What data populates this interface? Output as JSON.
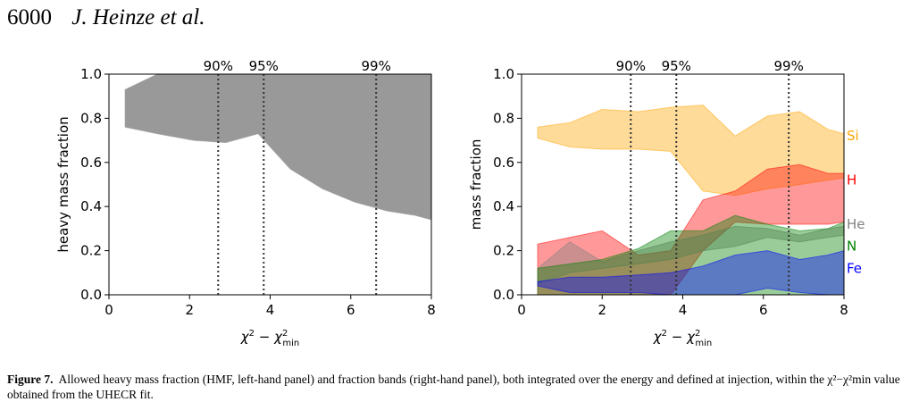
{
  "header": {
    "page_number": "6000",
    "authors": "J. Heinze et al."
  },
  "caption": {
    "label": "Figure 7.",
    "text": "Allowed heavy mass fraction (HMF, left-hand panel) and fraction bands (right-hand panel), both integrated over the energy and defined at injection, within the χ²−χ²min value obtained from the UHECR fit."
  },
  "chart_data": [
    {
      "type": "area",
      "xlabel": "χ² − χ²min",
      "ylabel": "heavy mass fraction",
      "xlim": [
        0,
        8
      ],
      "ylim": [
        0,
        1
      ],
      "xticks": [
        0,
        2,
        4,
        6,
        8
      ],
      "yticks": [
        0.0,
        0.2,
        0.4,
        0.6,
        0.8,
        1.0
      ],
      "ytick_labels": [
        "0.0",
        "0.2",
        "0.4",
        "0.6",
        "0.8",
        "1.0"
      ],
      "grid": false,
      "vlines": [
        {
          "x": 2.71,
          "label": "90%"
        },
        {
          "x": 3.84,
          "label": "95%"
        },
        {
          "x": 6.63,
          "label": "99%"
        }
      ],
      "series": [
        {
          "color": "#999999",
          "x": [
            0.4,
            1.2,
            2.1,
            2.9,
            3.7,
            4.5,
            5.3,
            6.1,
            6.9,
            7.6,
            8.0
          ],
          "lower": [
            0.76,
            0.73,
            0.7,
            0.69,
            0.73,
            0.57,
            0.48,
            0.42,
            0.38,
            0.36,
            0.34
          ],
          "upper": [
            0.93,
            1.0,
            1.0,
            1.0,
            1.0,
            1.0,
            1.0,
            1.0,
            1.0,
            1.0,
            1.0
          ]
        }
      ]
    },
    {
      "type": "area",
      "xlabel": "χ² − χ²min",
      "ylabel": "mass fraction",
      "xlim": [
        0,
        8
      ],
      "ylim": [
        0,
        1
      ],
      "xticks": [
        0,
        2,
        4,
        6,
        8
      ],
      "yticks": [
        0.0,
        0.2,
        0.4,
        0.6,
        0.8,
        1.0
      ],
      "ytick_labels": [
        "0.0",
        "0.2",
        "0.4",
        "0.6",
        "0.8",
        "1.0"
      ],
      "grid": false,
      "vlines": [
        {
          "x": 2.71,
          "label": "90%"
        },
        {
          "x": 3.84,
          "label": "95%"
        },
        {
          "x": 6.63,
          "label": "99%"
        }
      ],
      "x": [
        0.4,
        1.2,
        2.0,
        2.9,
        3.7,
        4.5,
        5.3,
        6.1,
        6.9,
        7.6,
        8.0
      ],
      "series": [
        {
          "name": "Si",
          "color": "#FFA500",
          "lower": [
            0.71,
            0.67,
            0.66,
            0.66,
            0.65,
            0.47,
            0.45,
            0.48,
            0.5,
            0.52,
            0.53
          ],
          "upper": [
            0.76,
            0.78,
            0.84,
            0.83,
            0.85,
            0.86,
            0.72,
            0.81,
            0.83,
            0.75,
            0.73
          ]
        },
        {
          "name": "H",
          "color": "#FF0000",
          "lower": [
            0.0,
            0.0,
            0.0,
            0.0,
            0.0,
            0.2,
            0.33,
            0.32,
            0.32,
            0.32,
            0.33
          ],
          "upper": [
            0.23,
            0.26,
            0.29,
            0.18,
            0.2,
            0.43,
            0.47,
            0.57,
            0.59,
            0.55,
            0.55
          ]
        },
        {
          "name": "He",
          "color": "#808080",
          "lower": [
            0.05,
            0.1,
            0.12,
            0.14,
            0.16,
            0.2,
            0.22,
            0.26,
            0.24,
            0.26,
            0.27
          ],
          "upper": [
            0.12,
            0.24,
            0.15,
            0.2,
            0.24,
            0.27,
            0.31,
            0.3,
            0.27,
            0.3,
            0.31
          ]
        },
        {
          "name": "N",
          "color": "#008000",
          "lower": [
            0.0,
            0.0,
            0.0,
            0.0,
            0.0,
            0.0,
            0.0,
            0.0,
            0.0,
            0.0,
            0.0
          ],
          "upper": [
            0.12,
            0.14,
            0.16,
            0.21,
            0.29,
            0.29,
            0.36,
            0.32,
            0.29,
            0.3,
            0.33
          ]
        },
        {
          "name": "Fe",
          "color": "#0000FF",
          "lower": [
            0.04,
            0.01,
            0.01,
            0.01,
            0.0,
            0.0,
            0.0,
            0.03,
            0.01,
            0.0,
            0.0
          ],
          "upper": [
            0.06,
            0.08,
            0.08,
            0.09,
            0.1,
            0.13,
            0.18,
            0.2,
            0.16,
            0.18,
            0.2
          ]
        }
      ]
    }
  ]
}
